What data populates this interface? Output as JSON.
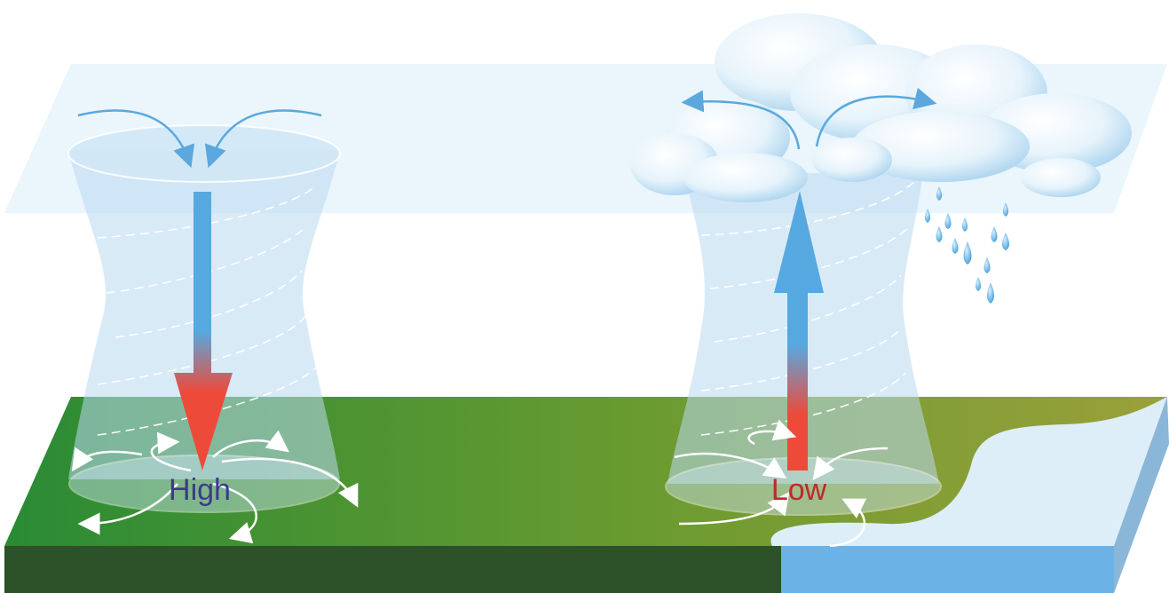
{
  "pressure_systems": [
    {
      "label": "High"
    },
    {
      "label": "Low"
    }
  ]
}
